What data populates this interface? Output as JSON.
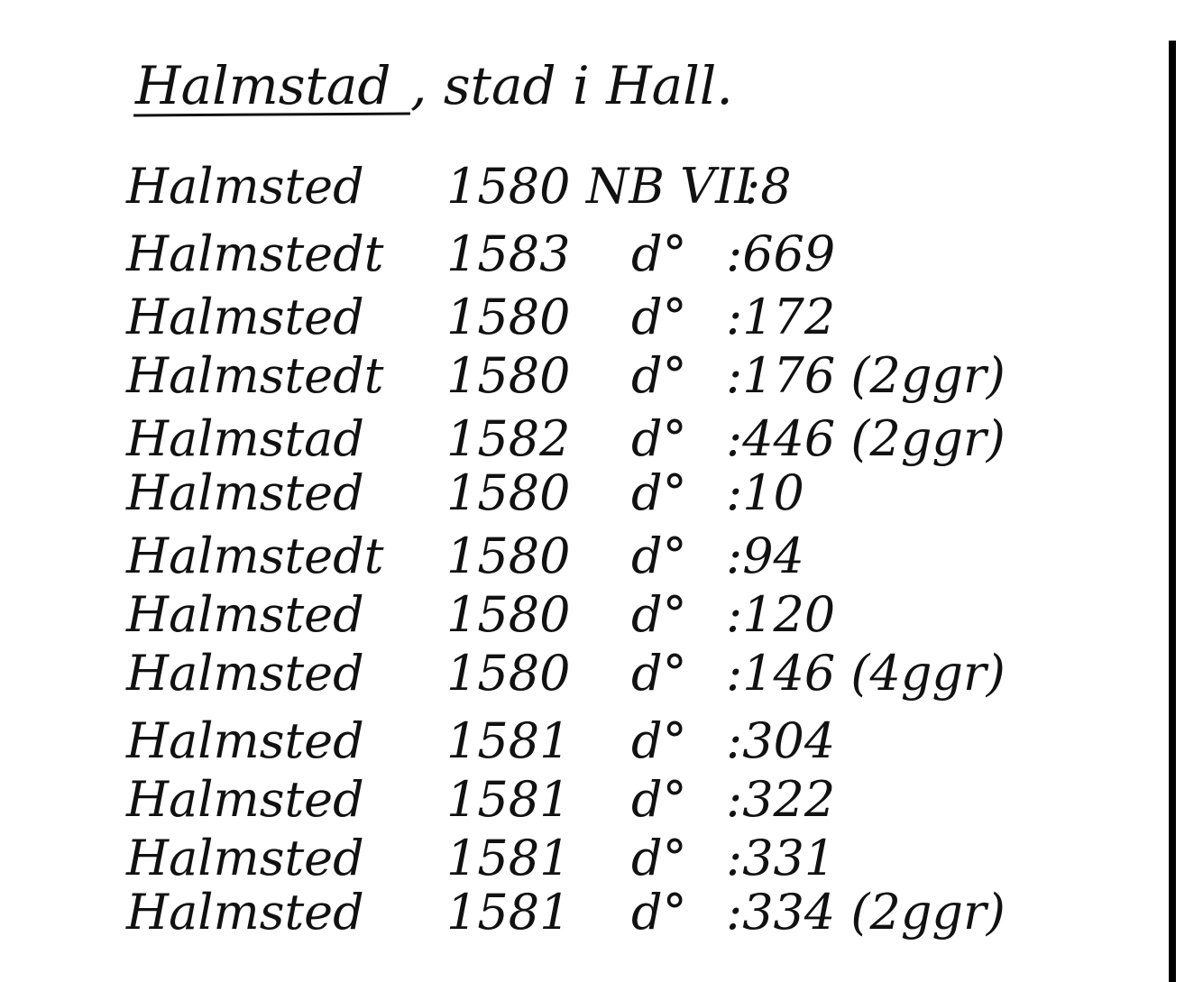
{
  "header": {
    "title_name": "Halmstad",
    "title_rest": ", stad i Hall."
  },
  "rows": [
    [
      "Halmsted",
      "1580",
      "NB VII",
      ":8"
    ],
    [
      "Halmstedt",
      "1583",
      "d°",
      ":669"
    ],
    [
      "Halmsted",
      "1580",
      "d°",
      ":172"
    ],
    [
      "Halmstedt",
      "1580",
      "d°",
      ":176 (2ggr)"
    ],
    [
      "Halmstad",
      "1582",
      "d°",
      ":446 (2ggr)"
    ],
    [
      "Halmsted",
      "1580",
      "d°",
      ":10"
    ],
    [
      "Halmstedt",
      "1580",
      "d°",
      ":94"
    ],
    [
      "Halmsted",
      "1580",
      "d°",
      ":120"
    ],
    [
      "Halmsted",
      "1580",
      "d°",
      ":146 (4ggr)"
    ],
    [
      "Halmsted",
      "1581",
      "d°",
      ":304"
    ],
    [
      "Halmsted",
      "1581",
      "d°",
      ":322"
    ],
    [
      "Halmsted",
      "1581",
      "d°",
      ":331"
    ],
    [
      "Halmsted",
      "1581",
      "d°",
      ":334 (2ggr)"
    ]
  ]
}
